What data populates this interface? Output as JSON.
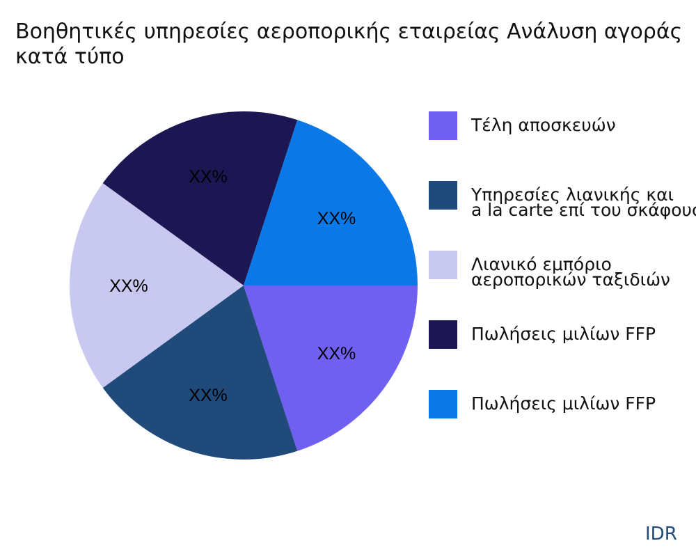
{
  "chart_data": {
    "type": "pie",
    "title": "Βοηθητικές υπηρεσίες αεροπορικής εταιρείας Ανάλυση αγοράς κατά τύπο",
    "legend_position": "right",
    "slices": [
      {
        "label": "Τέλη αποσκευών",
        "value": 20,
        "display": "XX%",
        "color": "#7060F2"
      },
      {
        "label": "Υπηρεσίες λιανικής και a la carte επί του σκάφους",
        "label_lines": [
          "Υπηρεσίες λιανικής και",
          "a la carte επί του σκάφους"
        ],
        "value": 20,
        "display": "XX%",
        "color": "#1F4A7A"
      },
      {
        "label": "Λιανικό εμπόριο αεροπορικών ταξιδιών",
        "label_lines": [
          "Λιανικό εμπόριο",
          "αεροπορικών ταξιδιών"
        ],
        "value": 20,
        "display": "XX%",
        "color": "#C8C8F0"
      },
      {
        "label": "Πωλήσεις μιλίων FFP",
        "value": 20,
        "display": "XX%",
        "color": "#1C1752"
      },
      {
        "label": "Πωλήσεις μιλίων FFP",
        "value": 20,
        "display": "XX%",
        "color": "#0A78E6"
      }
    ]
  },
  "brand": "IDR"
}
